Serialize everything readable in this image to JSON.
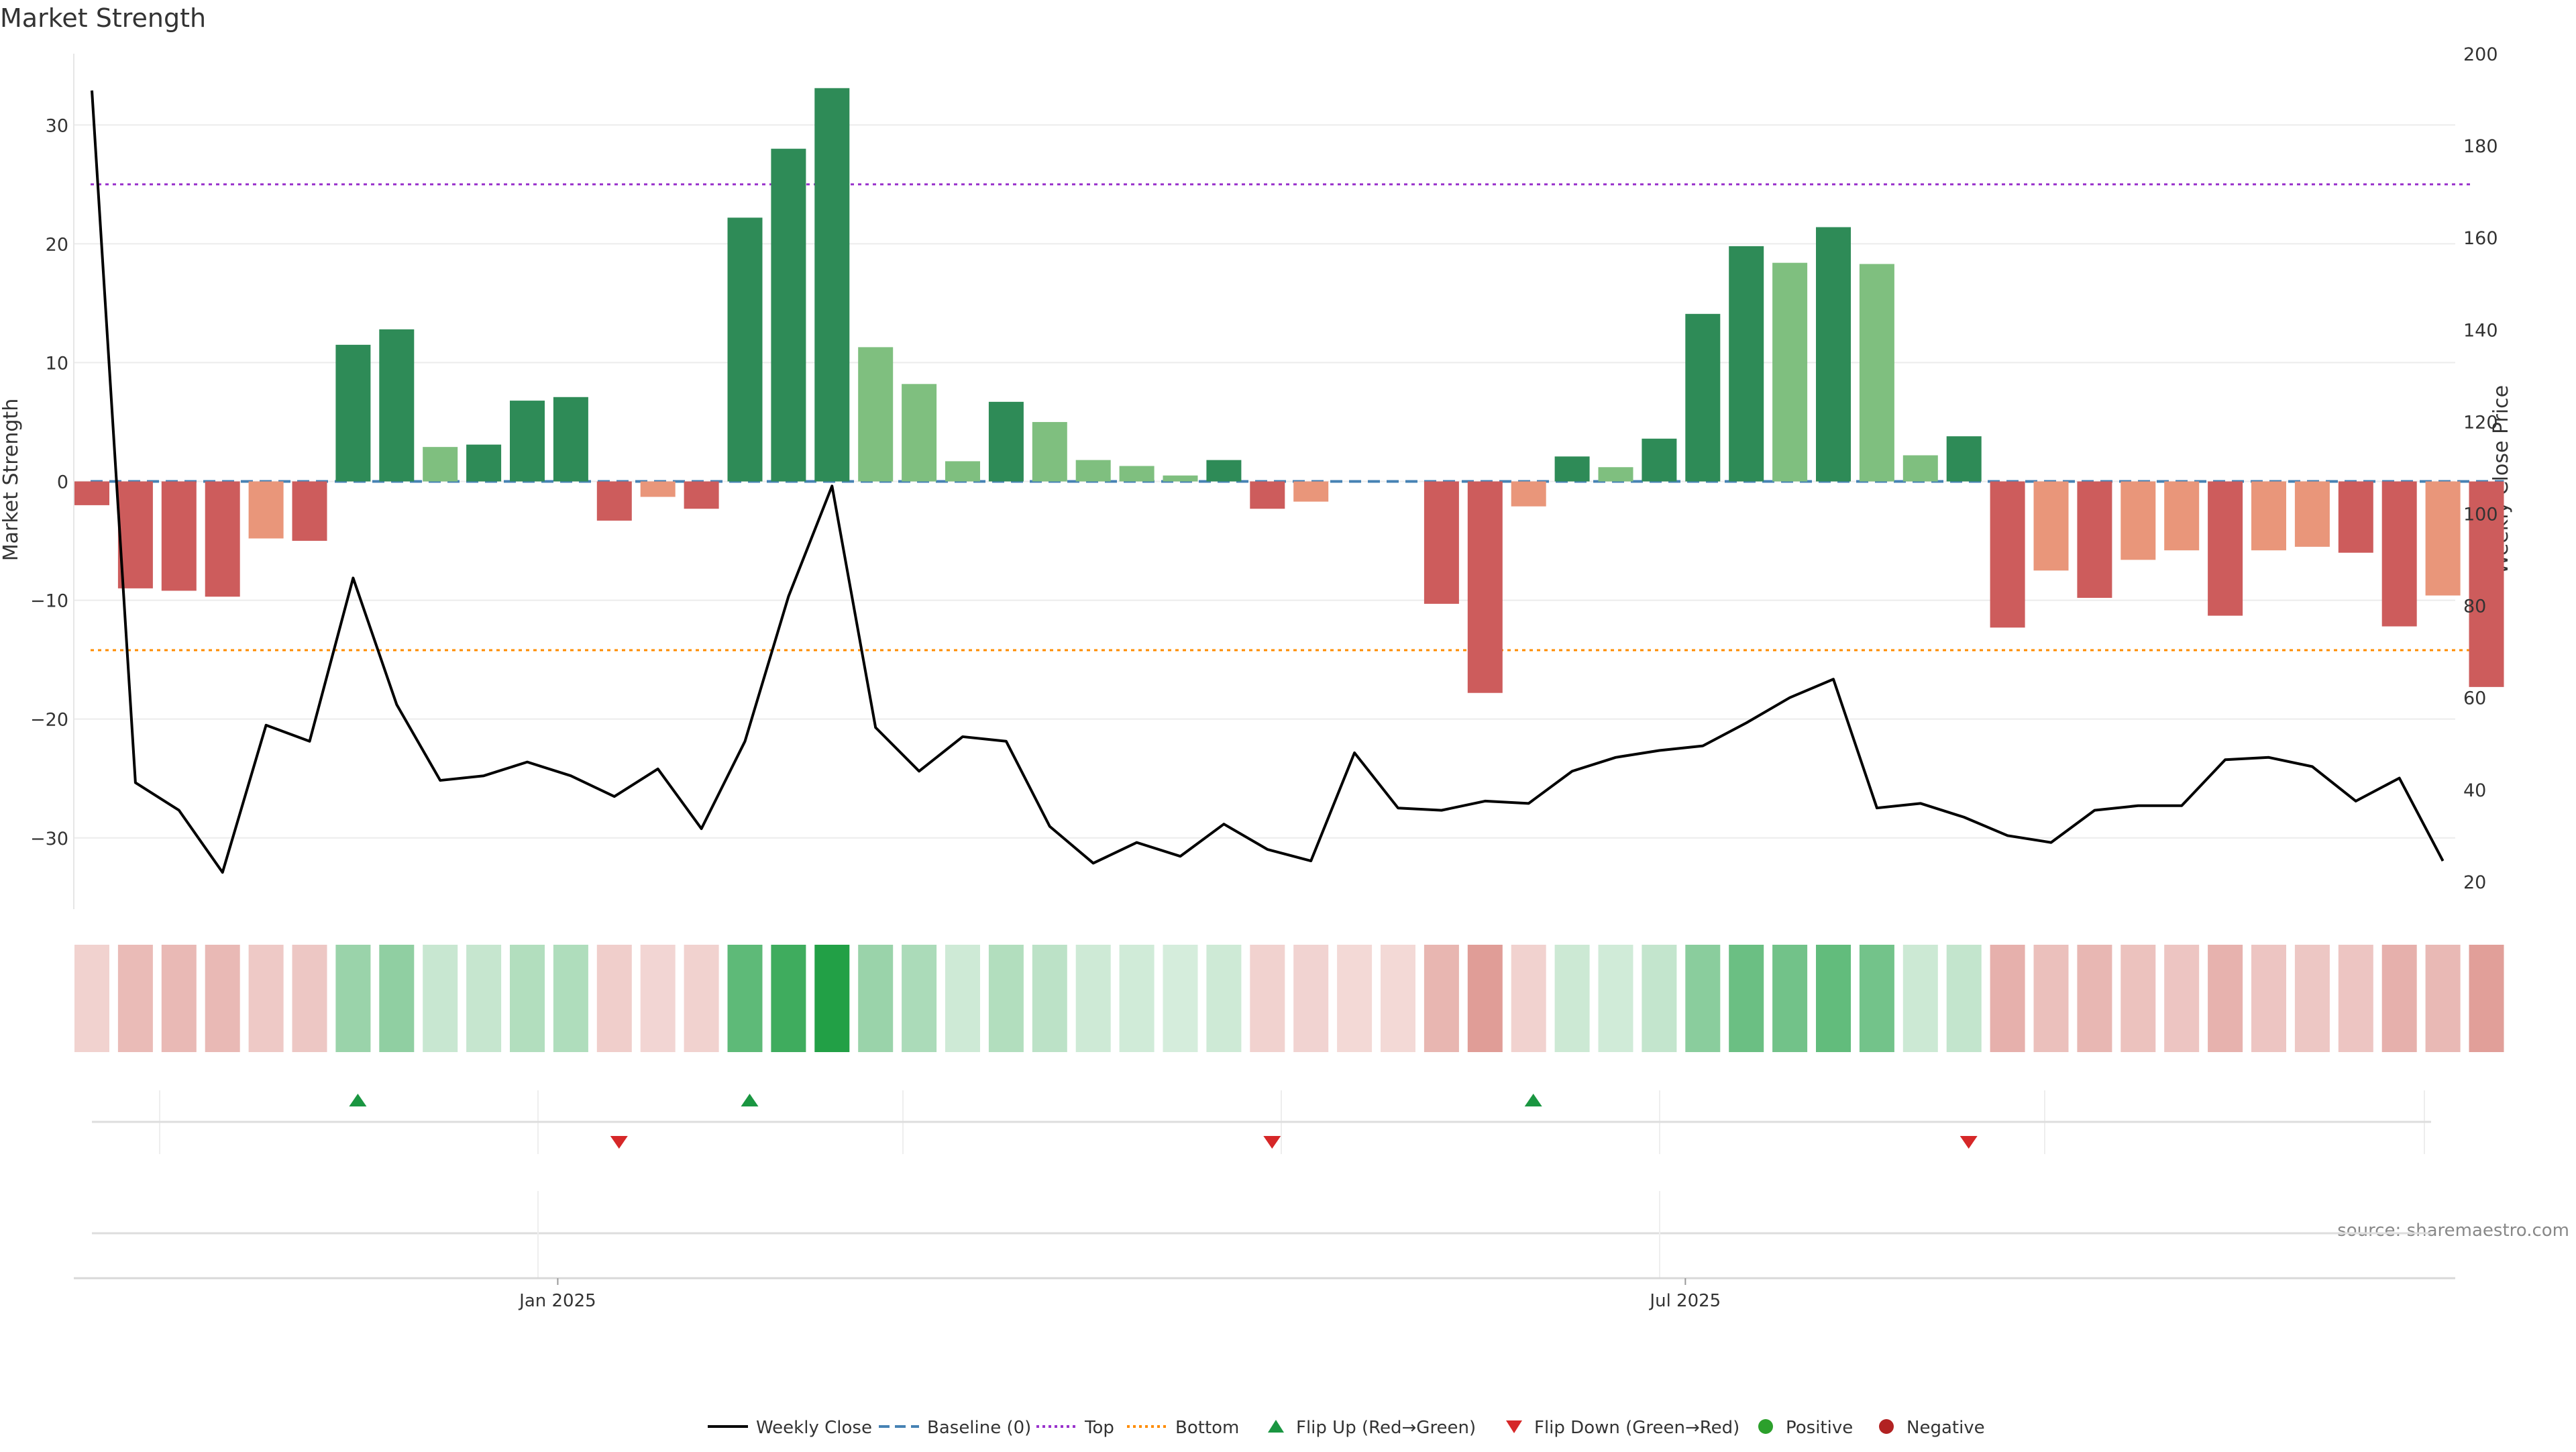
{
  "chart_data": {
    "type": "bar",
    "title": "Market Strength",
    "source": "source: sharemaestro.com",
    "y_left": {
      "label": "Market Strength",
      "ylim": [
        -36,
        36
      ],
      "ticks": [
        30,
        20,
        10,
        0,
        -10,
        -20,
        -30
      ],
      "tick_labels": [
        "30",
        "20",
        "10",
        "0",
        "−10",
        "−20",
        "−30"
      ]
    },
    "y_right": {
      "label": "Weekly Close Price",
      "ylim": [
        14,
        200
      ],
      "ticks": [
        200,
        180,
        160,
        140,
        120,
        100,
        80,
        60,
        40,
        20
      ],
      "tick_labels": [
        "200",
        "180",
        "160",
        "140",
        "120",
        "100",
        "80",
        "60",
        "40",
        "20"
      ]
    },
    "x_axis": {
      "tick_labels": [
        "Jan 2025",
        "Jul 2025"
      ],
      "tick_week_index": [
        10.7,
        36.6
      ]
    },
    "thresholds": {
      "baseline": 0,
      "top": 25,
      "bottom": -14.2
    },
    "grid": true,
    "colors": {
      "strong_positive": "#2e8b57",
      "weak_positive": "#7fbf7f",
      "strong_negative": "#cd5c5c",
      "weak_negative": "#e9967a",
      "price_line": "#000000",
      "baseline": "#4682b4",
      "top": "#9932cc",
      "bottom": "#ff8c00",
      "flip_up": "#1a9641",
      "flip_down": "#d62728",
      "positive": "#2ca02c",
      "negative": "#b22222"
    },
    "series": [
      {
        "name": "Market Strength",
        "type": "bar",
        "values": [
          -2,
          -9,
          -9.2,
          -9.7,
          -4.8,
          -5,
          11.5,
          12.8,
          2.9,
          3.1,
          6.8,
          7.1,
          -3.3,
          -1.3,
          -2.3,
          22.2,
          28,
          33.1,
          11.3,
          8.2,
          1.7,
          6.7,
          5,
          1.8,
          1.3,
          0.5,
          1.8,
          -2.3,
          -1.7,
          0,
          0,
          -10.3,
          -17.8,
          -2.1,
          2.1,
          1.2,
          3.6,
          14.1,
          19.8,
          18.4,
          21.4,
          18.3,
          2.2,
          3.8,
          -12.3,
          -7.5,
          -9.8,
          -6.6,
          -5.8,
          -11.3,
          -5.8,
          -5.5,
          -6,
          -12.2,
          -9.6,
          -17.3
        ],
        "strength": [
          "strong",
          "strong",
          "strong",
          "strong",
          "weak",
          "strong",
          "strong",
          "strong",
          "weak",
          "strong",
          "strong",
          "strong",
          "strong",
          "weak",
          "strong",
          "strong",
          "strong",
          "strong",
          "weak",
          "weak",
          "weak",
          "strong",
          "weak",
          "weak",
          "weak",
          "weak",
          "strong",
          "strong",
          "weak",
          "weak",
          "weak",
          "strong",
          "strong",
          "weak",
          "strong",
          "weak",
          "strong",
          "strong",
          "strong",
          "weak",
          "strong",
          "weak",
          "weak",
          "strong",
          "strong",
          "weak",
          "strong",
          "weak",
          "weak",
          "strong",
          "weak",
          "weak",
          "strong",
          "strong",
          "weak",
          "strong"
        ]
      },
      {
        "name": "Weekly Close",
        "type": "line",
        "axis": "right",
        "values": [
          192,
          41.5,
          35.5,
          22,
          54,
          50.5,
          86,
          58.5,
          42,
          43,
          46,
          43,
          38.5,
          44.5,
          31.5,
          50.5,
          82,
          106,
          53.5,
          44,
          51.5,
          50.5,
          32,
          24,
          28.5,
          25.5,
          32.5,
          27,
          24.5,
          48,
          36,
          35.5,
          37.5,
          37,
          44,
          47,
          48.5,
          49.5,
          54.5,
          60,
          64,
          36,
          37,
          34,
          30,
          28.5,
          35.5,
          36.5,
          36.5,
          46.5,
          47,
          45,
          37.5,
          42.5,
          24.5
        ]
      },
      {
        "name": "Baseline (0)",
        "type": "line"
      },
      {
        "name": "Top",
        "type": "line"
      },
      {
        "name": "Bottom",
        "type": "line"
      },
      {
        "name": "Flip Up (Red→Green)",
        "type": "scatter",
        "week_index": [
          6,
          15,
          33
        ]
      },
      {
        "name": "Flip Down (Green→Red)",
        "type": "scatter",
        "week_index": [
          12,
          27,
          43
        ]
      },
      {
        "name": "Positive",
        "type": "scatter"
      },
      {
        "name": "Negative",
        "type": "scatter"
      }
    ],
    "legend": {
      "placement": "bottom-center",
      "entries": [
        {
          "label": "Weekly Close",
          "kind": "line",
          "color": "#000000",
          "dash": "solid"
        },
        {
          "label": "Baseline (0)",
          "kind": "line",
          "color": "#4682b4",
          "dash": "dashed"
        },
        {
          "label": "Top",
          "kind": "line",
          "color": "#9932cc",
          "dash": "dotted"
        },
        {
          "label": "Bottom",
          "kind": "line",
          "color": "#ff8c00",
          "dash": "dotted"
        },
        {
          "label": "Flip Up (Red→Green)",
          "kind": "tri-up",
          "color": "#1a9641"
        },
        {
          "label": "Flip Down (Green→Red)",
          "kind": "tri-down",
          "color": "#d62728"
        },
        {
          "label": "Positive",
          "kind": "dot",
          "color": "#2ca02c"
        },
        {
          "label": "Negative",
          "kind": "dot",
          "color": "#b22222"
        }
      ]
    }
  }
}
